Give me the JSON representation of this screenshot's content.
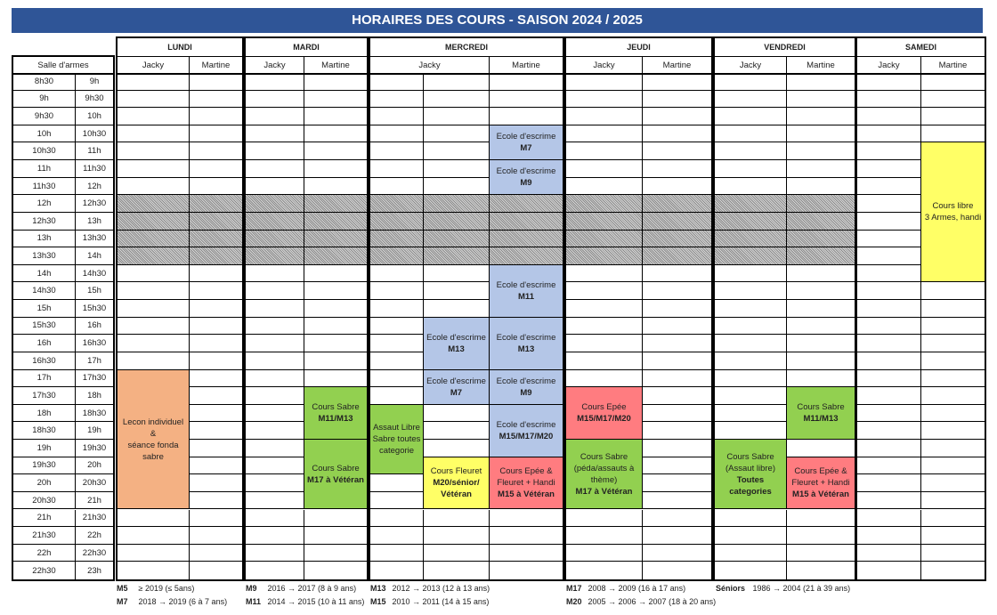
{
  "title": "HORAIRES DES COURS - SAISON 2024 / 2025",
  "salle_label": "Salle d'armes",
  "time_starts": [
    "8h30",
    "9h",
    "9h30",
    "10h",
    "10h30",
    "11h",
    "11h30",
    "12h",
    "12h30",
    "13h",
    "13h30",
    "14h",
    "14h30",
    "15h",
    "15h30",
    "16h",
    "16h30",
    "17h",
    "17h30",
    "18h",
    "18h30",
    "19h",
    "19h30",
    "20h",
    "20h30",
    "21h",
    "21h30",
    "22h",
    "22h30"
  ],
  "time_ends": [
    "9h",
    "9h30",
    "10h",
    "10h30",
    "11h",
    "11h30",
    "12h",
    "12h30",
    "13h",
    "13h30",
    "14h",
    "14h30",
    "15h",
    "15h30",
    "16h",
    "16h30",
    "17h",
    "17h30",
    "18h",
    "18h30",
    "19h",
    "19h30",
    "20h",
    "20h30",
    "21h",
    "21h30",
    "22h",
    "22h30",
    "23h"
  ],
  "lunch_break": {
    "start": "12h",
    "end": "14h"
  },
  "colors": {
    "title_bar": "#2f5597",
    "ecole": "#b4c6e7",
    "sabre": "#92d050",
    "epee": "#ff7c80",
    "fleuret": "#ffff66",
    "lecon": "#f4b183",
    "libre": "#ffff66"
  },
  "days": [
    {
      "name": "LUNDI",
      "coaches": [
        "Jacky",
        "Martine"
      ],
      "hatched": true
    },
    {
      "name": "MARDI",
      "coaches": [
        "Jacky",
        "Martine"
      ],
      "hatched": true
    },
    {
      "name": "MERCREDI",
      "coaches": [
        "Jacky",
        "Martine"
      ],
      "hatched": true
    },
    {
      "name": "JEUDI",
      "coaches": [
        "Jacky",
        "Martine"
      ],
      "hatched": true
    },
    {
      "name": "VENDREDI",
      "coaches": [
        "Jacky",
        "Martine"
      ],
      "hatched": true
    },
    {
      "name": "SAMEDI",
      "coaches": [
        "Jacky",
        "Martine"
      ],
      "hatched": false
    }
  ],
  "events": [
    {
      "day": 0,
      "col": 0,
      "start": "17h",
      "end": "21h",
      "color": "lecon",
      "lines": [
        {
          "t": "Lecon individuel"
        },
        {
          "t": "&"
        },
        {
          "t": "séance fonda sabre"
        }
      ]
    },
    {
      "day": 1,
      "col": 1,
      "start": "17h30",
      "end": "19h",
      "color": "sabre",
      "lines": [
        {
          "t": "Cours Sabre"
        },
        {
          "t": "M11/M13",
          "b": true
        }
      ]
    },
    {
      "day": 1,
      "col": 1,
      "start": "19h",
      "end": "21h",
      "color": "sabre",
      "lines": [
        {
          "t": "Cours Sabre"
        },
        {
          "t": "M17 à Vétéran",
          "b": true
        }
      ]
    },
    {
      "day": 2,
      "col": 2,
      "start": "10h",
      "end": "11h",
      "color": "ecole",
      "lines": [
        {
          "t": "Ecole d'escrime"
        },
        {
          "t": "M7",
          "b": true
        }
      ]
    },
    {
      "day": 2,
      "col": 2,
      "start": "11h",
      "end": "12h",
      "color": "ecole",
      "lines": [
        {
          "t": "Ecole d'escrime"
        },
        {
          "t": "M9",
          "b": true
        }
      ]
    },
    {
      "day": 2,
      "col": 2,
      "start": "14h",
      "end": "15h30",
      "color": "ecole",
      "lines": [
        {
          "t": "Ecole d'escrime"
        },
        {
          "t": "M11",
          "b": true
        }
      ]
    },
    {
      "day": 2,
      "col": 1,
      "start": "15h30",
      "end": "17h",
      "color": "ecole",
      "lines": [
        {
          "t": "Ecole d'escrime"
        },
        {
          "t": "M13",
          "b": true
        }
      ]
    },
    {
      "day": 2,
      "col": 2,
      "start": "15h30",
      "end": "17h",
      "color": "ecole",
      "lines": [
        {
          "t": "Ecole d'escrime"
        },
        {
          "t": "M13",
          "b": true
        }
      ]
    },
    {
      "day": 2,
      "col": 1,
      "start": "17h",
      "end": "18h",
      "color": "ecole",
      "lines": [
        {
          "t": "Ecole d'escrime"
        },
        {
          "t": "M7",
          "b": true
        }
      ]
    },
    {
      "day": 2,
      "col": 2,
      "start": "17h",
      "end": "18h",
      "color": "ecole",
      "lines": [
        {
          "t": "Ecole d'escrime"
        },
        {
          "t": "M9",
          "b": true
        }
      ]
    },
    {
      "day": 2,
      "col": 2,
      "start": "18h",
      "end": "19h30",
      "color": "ecole",
      "lines": [
        {
          "t": "Ecole d'escrime"
        },
        {
          "t": "M15/M17/M20",
          "b": true
        }
      ]
    },
    {
      "day": 2,
      "col": 0,
      "start": "18h",
      "end": "20h",
      "color": "sabre",
      "lines": [
        {
          "t": "Assaut Libre"
        },
        {
          "t": "Sabre toutes"
        },
        {
          "t": "categorie"
        }
      ]
    },
    {
      "day": 2,
      "col": 1,
      "start": "19h30",
      "end": "21h",
      "color": "fleuret",
      "lines": [
        {
          "t": "Cours Fleuret"
        },
        {
          "t": "M20/sénior/",
          "b": true
        },
        {
          "t": "Vétéran",
          "b": true
        }
      ]
    },
    {
      "day": 2,
      "col": 2,
      "start": "19h30",
      "end": "21h",
      "color": "epee",
      "lines": [
        {
          "t": "Cours Epée &"
        },
        {
          "t": "Fleuret + Handi"
        },
        {
          "t": "M15 à Vétéran",
          "b": true
        }
      ]
    },
    {
      "day": 3,
      "col": 0,
      "start": "17h30",
      "end": "19h",
      "color": "epee",
      "lines": [
        {
          "t": "Cours Epée"
        },
        {
          "t": "M15/M17/M20",
          "b": true
        }
      ]
    },
    {
      "day": 3,
      "col": 0,
      "start": "19h",
      "end": "21h",
      "color": "sabre",
      "lines": [
        {
          "t": "Cours Sabre"
        },
        {
          "t": "(péda/assauts à"
        },
        {
          "t": "thème)"
        },
        {
          "t": "M17 à Vétéran",
          "b": true
        }
      ]
    },
    {
      "day": 4,
      "col": 1,
      "start": "17h30",
      "end": "19h",
      "color": "sabre",
      "lines": [
        {
          "t": "Cours Sabre"
        },
        {
          "t": "M11/M13",
          "b": true
        }
      ]
    },
    {
      "day": 4,
      "col": 0,
      "start": "19h",
      "end": "21h",
      "color": "sabre",
      "lines": [
        {
          "t": "Cours Sabre"
        },
        {
          "t": "(Assaut libre)"
        },
        {
          "t": "Toutes categories",
          "b": true
        }
      ]
    },
    {
      "day": 4,
      "col": 1,
      "start": "19h30",
      "end": "21h",
      "color": "epee",
      "lines": [
        {
          "t": "Cours Epée &"
        },
        {
          "t": "Fleuret + Handi"
        },
        {
          "t": "M15 à Vétéran",
          "b": true
        }
      ]
    },
    {
      "day": 5,
      "col": 1,
      "start": "10h30",
      "end": "14h30",
      "color": "libre",
      "lines": [
        {
          "t": "Cours libre"
        },
        {
          "t": "3 Armes, handi"
        }
      ]
    }
  ],
  "legend": [
    {
      "code": "M5",
      "text": "≥ 2019 (≤ 5ans)"
    },
    {
      "code": "M7",
      "text": "2018 → 2019 (6 à 7 ans)"
    },
    {
      "code": "M9",
      "text": "2016 → 2017 (8 à 9 ans)"
    },
    {
      "code": "M11",
      "text": "2014 → 2015 (10 à 11 ans)"
    },
    {
      "code": "M13",
      "text": "2012 → 2013 (12 à 13 ans)"
    },
    {
      "code": "M15",
      "text": "2010 → 2011 (14 à 15 ans)"
    },
    {
      "code": "M17",
      "text": "2008 → 2009 (16 à 17 ans)"
    },
    {
      "code": "M20",
      "text": "2005 → 2006 → 2007 (18 à 20 ans)"
    },
    {
      "code": "Séniors",
      "text": "1986 → 2004 (21 à 39 ans)"
    }
  ]
}
